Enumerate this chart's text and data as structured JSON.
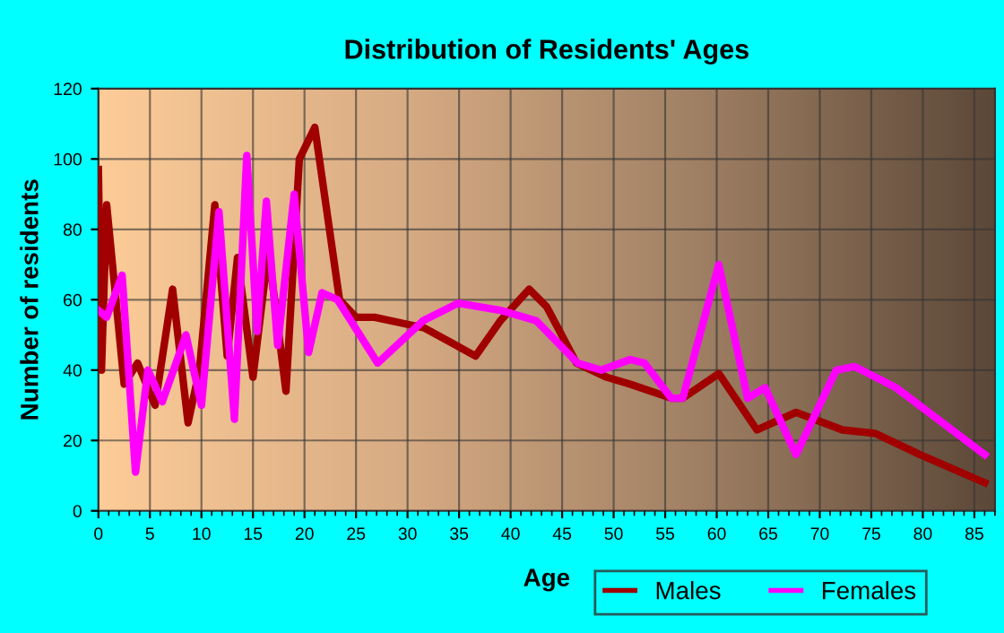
{
  "chart_data": {
    "type": "line",
    "title": "Distribution of Residents' Ages",
    "xlabel": "Age",
    "ylabel": "Number of residents",
    "xlim": [
      0,
      87
    ],
    "xticks": [
      0,
      5,
      10,
      15,
      20,
      25,
      30,
      35,
      40,
      45,
      50,
      55,
      60,
      65,
      70,
      75,
      80,
      85
    ],
    "ylim": [
      0,
      120
    ],
    "yticks": [
      0,
      20,
      40,
      60,
      80,
      100,
      120
    ],
    "grid": true,
    "legend": "bottom right",
    "line_style": "solid",
    "marker": "none",
    "series": [
      {
        "name": "Males",
        "color": "#a00000",
        "x": [
          0,
          0.3,
          0.8,
          2.5,
          3.8,
          5.5,
          7.2,
          8.7,
          9.8,
          11.3,
          12.5,
          13.5,
          15,
          16.5,
          18.2,
          19.5,
          21,
          23.4,
          25,
          26.8,
          30,
          31.6,
          36.6,
          39,
          41.8,
          43.5,
          46.4,
          49.3,
          51.6,
          55.6,
          56.7,
          60.2,
          63.9,
          67.7,
          72.2,
          75.4,
          79.7,
          86
        ],
        "values": [
          97,
          40,
          87,
          36,
          42,
          30,
          63,
          25,
          40,
          87,
          44,
          72,
          38,
          74,
          34,
          100,
          109,
          60,
          55,
          55,
          53,
          52,
          44,
          54,
          63,
          58,
          42,
          38,
          36,
          32,
          32,
          39,
          23,
          28,
          23,
          22,
          16,
          8
        ]
      },
      {
        "name": "Females",
        "color": "#ff00ff",
        "x": [
          0,
          0.8,
          2.3,
          3.6,
          4.8,
          6.2,
          8.5,
          10,
          11.7,
          13.2,
          14.4,
          15.4,
          16.3,
          17.4,
          19,
          20.4,
          21.7,
          23.2,
          27.1,
          31.5,
          34.9,
          39,
          42.5,
          46.5,
          48.8,
          51.6,
          53,
          55.6,
          56.7,
          60.2,
          63,
          64.7,
          67.7,
          71.6,
          73.4,
          77.4,
          86
        ],
        "values": [
          57,
          55,
          67,
          11,
          40,
          31,
          50,
          30,
          85,
          26,
          101,
          51,
          88,
          47,
          90,
          45,
          62,
          60,
          42,
          54,
          59,
          57,
          54,
          42,
          40,
          43,
          42,
          32,
          32,
          70,
          32,
          35,
          16,
          40,
          41,
          35,
          16
        ]
      }
    ]
  }
}
